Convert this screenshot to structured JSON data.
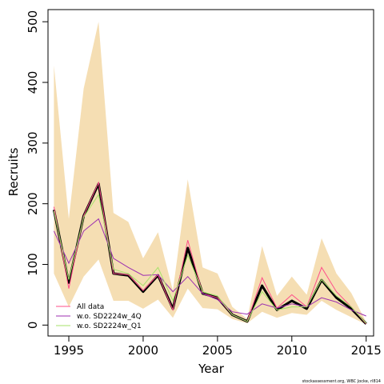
{
  "chart_data": {
    "type": "line",
    "xlabel": "Year",
    "ylabel": "Recruits",
    "xlim": [
      1993.6,
      2015.5
    ],
    "ylim": [
      -18,
      520
    ],
    "x_ticks": [
      1995,
      2000,
      2005,
      2010,
      2015
    ],
    "y_ticks": [
      0,
      100,
      200,
      300,
      400,
      500
    ],
    "grid": false,
    "legend_position": "bottom-left",
    "credit": "stockassessment.org, WBC Jocke, rl814",
    "x": [
      1994,
      1995,
      1996,
      1997,
      1998,
      1999,
      2000,
      2001,
      2002,
      2003,
      2004,
      2005,
      2006,
      2007,
      2008,
      2009,
      2010,
      2011,
      2012,
      2013,
      2014,
      2015
    ],
    "confidence_band": {
      "color": "#f5deb3",
      "lower": [
        85,
        30,
        80,
        108,
        40,
        40,
        27,
        42,
        12,
        60,
        28,
        26,
        10,
        3,
        22,
        12,
        20,
        17,
        40,
        25,
        13,
        1
      ],
      "upper": [
        428,
        175,
        390,
        500,
        185,
        170,
        110,
        153,
        57,
        240,
        95,
        85,
        30,
        10,
        130,
        48,
        80,
        50,
        143,
        85,
        53,
        5
      ]
    },
    "base_series": {
      "color": "#000000",
      "values": [
        190,
        70,
        180,
        233,
        85,
        82,
        55,
        82,
        27,
        127,
        52,
        45,
        17,
        6,
        65,
        25,
        40,
        27,
        74,
        45,
        27,
        2
      ]
    },
    "series": [
      {
        "name": "All data",
        "color": "#ff4d8a",
        "values": [
          195,
          60,
          180,
          235,
          85,
          83,
          57,
          83,
          25,
          140,
          52,
          45,
          17,
          6,
          78,
          28,
          50,
          30,
          95,
          55,
          30,
          2
        ]
      },
      {
        "name": "w.o. SD2224w_4Q",
        "color": "#9c2fb0",
        "values": [
          155,
          102,
          155,
          175,
          110,
          95,
          82,
          83,
          55,
          80,
          52,
          42,
          22,
          18,
          35,
          28,
          35,
          30,
          45,
          38,
          25,
          15
        ]
      },
      {
        "name": "w.o. SD2224w_Q1",
        "color": "#a6e26a",
        "values": [
          188,
          75,
          178,
          215,
          92,
          85,
          65,
          95,
          40,
          115,
          55,
          48,
          17,
          6,
          55,
          25,
          30,
          30,
          75,
          48,
          30,
          3
        ]
      }
    ]
  }
}
